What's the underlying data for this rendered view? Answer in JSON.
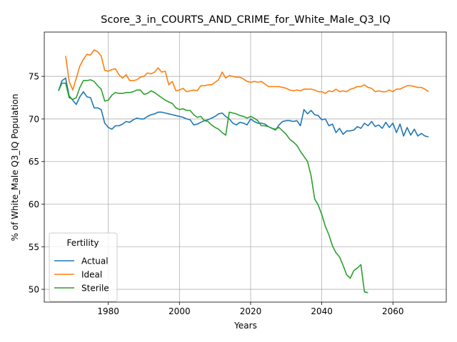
{
  "chart_data": {
    "type": "line",
    "title": "Score_3_in_COURTS_AND_CRIME_for_White_Male_Q3_IQ",
    "xlabel": "Years",
    "ylabel": "% of White_Male Q3_IQ Population",
    "xlim": [
      1962,
      2075
    ],
    "ylim": [
      48.5,
      80.2
    ],
    "xticks": [
      1980,
      2000,
      2020,
      2040,
      2060
    ],
    "yticks": [
      50,
      55,
      60,
      65,
      70,
      75
    ],
    "grid": true,
    "legend": {
      "title": "Fertility",
      "placement": "lower-left"
    },
    "series": [
      {
        "name": "Actual",
        "color": "#1f77b4",
        "x": [
          1966,
          1967,
          1968,
          1969,
          1970,
          1971,
          1972,
          1973,
          1974,
          1975,
          1976,
          1977,
          1978,
          1979,
          1980,
          1981,
          1982,
          1983,
          1984,
          1985,
          1986,
          1987,
          1988,
          1989,
          1990,
          1991,
          1992,
          1993,
          1994,
          1995,
          1996,
          1997,
          1998,
          1999,
          2000,
          2001,
          2002,
          2003,
          2004,
          2005,
          2006,
          2007,
          2008,
          2009,
          2010,
          2011,
          2012,
          2013,
          2014,
          2015,
          2016,
          2017,
          2018,
          2019,
          2020,
          2021,
          2022,
          2023,
          2024,
          2025,
          2026,
          2027,
          2028,
          2029,
          2030,
          2031,
          2032,
          2033,
          2034,
          2035,
          2036,
          2037,
          2038,
          2039,
          2040,
          2041,
          2042,
          2043,
          2044,
          2045,
          2046,
          2047,
          2048,
          2049,
          2050,
          2051,
          2052,
          2053,
          2054,
          2055,
          2056,
          2057,
          2058,
          2059,
          2060,
          2061,
          2062,
          2063,
          2064,
          2065,
          2066,
          2067,
          2068,
          2069,
          2070
        ],
        "y": [
          73.3,
          74.5,
          74.8,
          72.7,
          72.2,
          71.7,
          72.6,
          73.2,
          72.6,
          72.5,
          71.3,
          71.3,
          71.1,
          69.5,
          69.0,
          68.8,
          69.2,
          69.2,
          69.4,
          69.7,
          69.6,
          69.9,
          70.1,
          70.0,
          70.0,
          70.3,
          70.5,
          70.6,
          70.8,
          70.8,
          70.7,
          70.6,
          70.5,
          70.4,
          70.3,
          70.2,
          70.0,
          69.9,
          69.3,
          69.4,
          69.6,
          69.8,
          69.9,
          70.1,
          70.3,
          70.6,
          70.7,
          70.3,
          70.0,
          69.5,
          69.3,
          69.6,
          69.5,
          69.3,
          70.0,
          69.7,
          69.5,
          69.5,
          69.4,
          69.1,
          68.9,
          68.7,
          69.3,
          69.7,
          69.8,
          69.8,
          69.7,
          69.8,
          69.2,
          71.1,
          70.6,
          71.0,
          70.5,
          70.4,
          69.9,
          70.0,
          69.2,
          69.4,
          68.4,
          68.9,
          68.2,
          68.6,
          68.6,
          68.7,
          69.1,
          68.9,
          69.5,
          69.2,
          69.7,
          69.1,
          69.3,
          68.9,
          69.6,
          69.0,
          69.5,
          68.4,
          69.4,
          68.0,
          69.0,
          68.1,
          68.8,
          68.0,
          68.3,
          68.0,
          67.9
        ]
      },
      {
        "name": "Ideal",
        "color": "#ff7f0e",
        "x": [
          1968,
          1969,
          1970,
          1971,
          1972,
          1973,
          1974,
          1975,
          1976,
          1977,
          1978,
          1979,
          1980,
          1981,
          1982,
          1983,
          1984,
          1985,
          1986,
          1987,
          1988,
          1989,
          1990,
          1991,
          1992,
          1993,
          1994,
          1995,
          1996,
          1997,
          1998,
          1999,
          2000,
          2001,
          2002,
          2003,
          2004,
          2005,
          2006,
          2007,
          2008,
          2009,
          2010,
          2011,
          2012,
          2013,
          2014,
          2015,
          2016,
          2017,
          2018,
          2019,
          2020,
          2021,
          2022,
          2023,
          2024,
          2025,
          2026,
          2027,
          2028,
          2029,
          2030,
          2031,
          2032,
          2033,
          2034,
          2035,
          2036,
          2037,
          2038,
          2039,
          2040,
          2041,
          2042,
          2043,
          2044,
          2045,
          2046,
          2047,
          2048,
          2049,
          2050,
          2051,
          2052,
          2053,
          2054,
          2055,
          2056,
          2057,
          2058,
          2059,
          2060,
          2061,
          2062,
          2063,
          2064,
          2065,
          2066,
          2067,
          2068,
          2069,
          2070
        ],
        "y": [
          77.4,
          74.4,
          73.4,
          74.8,
          76.2,
          77.0,
          77.6,
          77.5,
          78.1,
          77.9,
          77.4,
          75.7,
          75.6,
          75.8,
          75.9,
          75.2,
          74.8,
          75.2,
          74.5,
          74.5,
          74.6,
          74.9,
          75.0,
          75.4,
          75.3,
          75.5,
          76.0,
          75.5,
          75.6,
          74.0,
          74.4,
          73.3,
          73.4,
          73.6,
          73.2,
          73.3,
          73.4,
          73.3,
          73.9,
          73.9,
          74.0,
          74.0,
          74.3,
          74.6,
          75.5,
          74.8,
          75.1,
          75.0,
          74.9,
          74.9,
          74.7,
          74.4,
          74.3,
          74.4,
          74.3,
          74.4,
          74.1,
          73.8,
          73.8,
          73.8,
          73.8,
          73.7,
          73.6,
          73.4,
          73.3,
          73.4,
          73.3,
          73.5,
          73.5,
          73.5,
          73.4,
          73.2,
          73.2,
          73.0,
          73.3,
          73.2,
          73.5,
          73.2,
          73.3,
          73.2,
          73.5,
          73.6,
          73.8,
          73.8,
          74.0,
          73.7,
          73.6,
          73.2,
          73.3,
          73.2,
          73.2,
          73.4,
          73.2,
          73.5,
          73.5,
          73.7,
          73.9,
          73.9,
          73.8,
          73.7,
          73.7,
          73.5,
          73.2
        ]
      },
      {
        "name": "Sterile",
        "color": "#2ca02c",
        "x": [
          1966,
          1967,
          1968,
          1969,
          1970,
          1971,
          1972,
          1973,
          1974,
          1975,
          1976,
          1977,
          1978,
          1979,
          1980,
          1981,
          1982,
          1983,
          1984,
          1985,
          1986,
          1987,
          1988,
          1989,
          1990,
          1991,
          1992,
          1993,
          1994,
          1995,
          1996,
          1997,
          1998,
          1999,
          2000,
          2001,
          2002,
          2003,
          2004,
          2005,
          2006,
          2007,
          2008,
          2009,
          2010,
          2011,
          2012,
          2013,
          2014,
          2015,
          2016,
          2017,
          2018,
          2019,
          2020,
          2021,
          2022,
          2023,
          2024,
          2025,
          2026,
          2027,
          2028,
          2029,
          2030,
          2031,
          2032,
          2033,
          2034,
          2035,
          2036,
          2037,
          2038,
          2039,
          2040,
          2041,
          2042,
          2043,
          2044,
          2045,
          2046,
          2047,
          2048,
          2049,
          2050,
          2051,
          2052,
          2053
        ],
        "y": [
          73.3,
          74.2,
          74.2,
          72.5,
          72.3,
          72.5,
          73.7,
          74.5,
          74.5,
          74.6,
          74.4,
          73.9,
          73.5,
          72.1,
          72.2,
          72.8,
          73.1,
          73.0,
          73.0,
          73.1,
          73.1,
          73.2,
          73.4,
          73.4,
          72.9,
          73.0,
          73.3,
          73.1,
          72.8,
          72.5,
          72.2,
          72.0,
          71.8,
          71.3,
          71.1,
          71.2,
          71.0,
          71.0,
          70.5,
          70.2,
          70.3,
          69.8,
          69.7,
          69.3,
          69.0,
          68.8,
          68.4,
          68.1,
          70.8,
          70.7,
          70.6,
          70.4,
          70.3,
          70.1,
          70.3,
          70.1,
          69.8,
          69.2,
          69.2,
          69.1,
          68.9,
          68.8,
          69.0,
          68.6,
          68.2,
          67.6,
          67.3,
          66.9,
          66.2,
          65.6,
          65.0,
          63.3,
          60.6,
          59.9,
          58.8,
          57.4,
          56.4,
          55.1,
          54.3,
          53.8,
          52.8,
          51.7,
          51.3,
          52.2,
          52.5,
          52.9,
          49.7,
          49.6
        ]
      }
    ]
  }
}
